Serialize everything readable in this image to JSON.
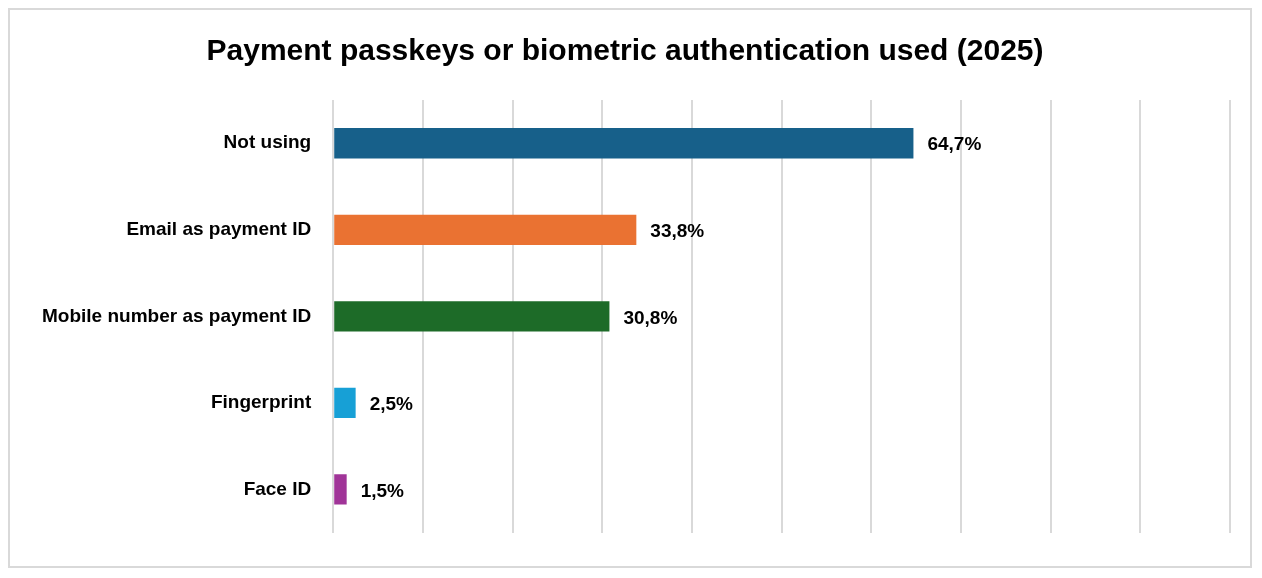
{
  "chart_data": {
    "type": "bar",
    "orientation": "horizontal",
    "title": "Payment passkeys or biometric authentication used (2025)",
    "categories": [
      "Not using",
      "Email as payment ID",
      "Mobile number as payment ID",
      "Fingerprint",
      "Face ID"
    ],
    "values": [
      64.7,
      33.8,
      30.8,
      2.5,
      1.5
    ],
    "colors": [
      "#17608a",
      "#ea7232",
      "#1d6b28",
      "#17a0d6",
      "#a03498"
    ],
    "value_labels": [
      "64,7%",
      "33,8%",
      "30,8%",
      "2,5%",
      "1,5%"
    ],
    "xlim": [
      0,
      100
    ],
    "xticks": [
      {
        "value": 0,
        "label": null
      },
      {
        "value": 10,
        "label": null
      },
      {
        "value": 20,
        "label": null
      },
      {
        "value": 30,
        "label": null
      },
      {
        "value": 40,
        "label": null
      },
      {
        "value": 50,
        "label": null
      },
      {
        "value": 60,
        "label": null
      },
      {
        "value": 70,
        "label": null
      },
      {
        "value": 80,
        "label": null
      },
      {
        "value": 90,
        "label": null
      },
      {
        "value": 100,
        "label": null
      }
    ],
    "tick_labels": "y",
    "grid": "x",
    "legend": false
  }
}
